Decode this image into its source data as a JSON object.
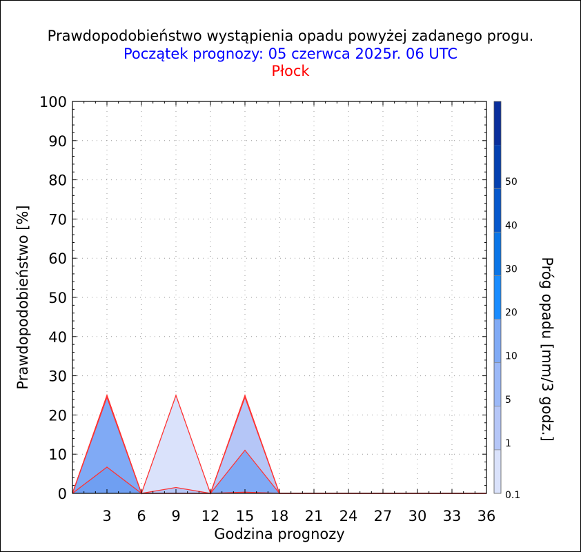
{
  "header": {
    "title": "Prawdopodobieństwo wystąpienia opadu powyżej zadanego progu.",
    "subtitle": "Początek prognozy: 05 czerwca 2025r. 06 UTC",
    "station": "Płock"
  },
  "colors": {
    "title": "#000000",
    "subtitle": "#0000ff",
    "station": "#ff0000",
    "series_line": "#ff3333",
    "grid": "#999999"
  },
  "chart_data": {
    "type": "area",
    "xlabel": "Godzina prognozy",
    "ylabel": "Prawdopodobieństwo [%]",
    "xlim": [
      0,
      36
    ],
    "ylim": [
      0,
      100
    ],
    "x_ticks": [
      "3",
      "6",
      "9",
      "12",
      "15",
      "18",
      "21",
      "24",
      "27",
      "30",
      "33",
      "36"
    ],
    "y_ticks": [
      "0",
      "10",
      "20",
      "30",
      "40",
      "50",
      "60",
      "70",
      "80",
      "90",
      "100"
    ],
    "grid": true,
    "x": [
      0,
      3,
      6,
      9,
      12,
      15,
      18,
      21,
      24,
      27,
      30,
      33,
      36
    ],
    "series": [
      {
        "name": "0.1",
        "color": "#dae2fb",
        "values": [
          0,
          25,
          0,
          25,
          0,
          25,
          0,
          0,
          0,
          0,
          0,
          0,
          0
        ]
      },
      {
        "name": "1",
        "color": "#b5c6f7",
        "values": [
          0,
          25,
          0,
          1.5,
          0,
          24.5,
          0,
          0,
          0,
          0,
          0,
          0,
          0
        ]
      },
      {
        "name": "5",
        "color": "#80aaf5",
        "values": [
          0,
          24.5,
          0,
          0,
          0,
          11,
          0,
          0,
          0,
          0,
          0,
          0,
          0
        ]
      },
      {
        "name": "10",
        "color": "#6f9ff2",
        "values": [
          0,
          6.7,
          0,
          0,
          0,
          0.3,
          0,
          0,
          0,
          0,
          0,
          0,
          0
        ]
      }
    ],
    "colorbar": {
      "title": "Próg opadu [mm/3 godz.]",
      "labels": [
        "0.1",
        "1",
        "5",
        "10",
        "20",
        "30",
        "40",
        "50"
      ],
      "colors": [
        "#dae2fb",
        "#b5c6f7",
        "#9bb8f7",
        "#80aaf5",
        "#1a8cff",
        "#0a75e6",
        "#0758cc",
        "#0440b0",
        "#0a2f9c"
      ]
    }
  }
}
